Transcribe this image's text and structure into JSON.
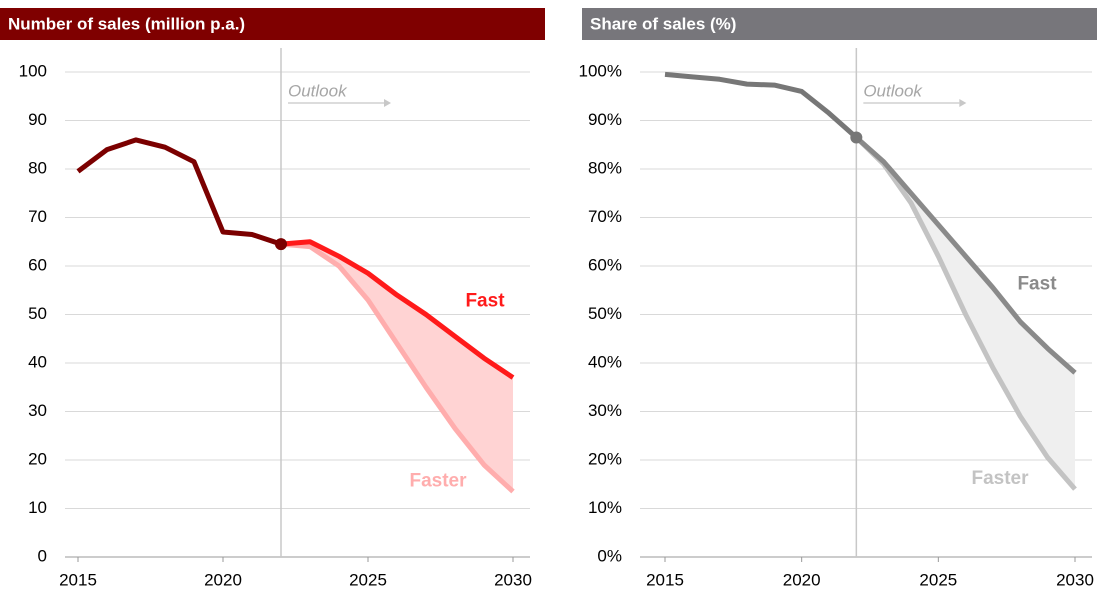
{
  "chart_data": [
    {
      "type": "line",
      "title": "Number of sales (million p.a.)",
      "annotation": "Outlook",
      "outlook_x": 2022,
      "xlim": [
        2015,
        2030
      ],
      "xticks": [
        2015,
        2020,
        2025,
        2030
      ],
      "ylim": [
        0,
        100
      ],
      "yticks": [
        0,
        10,
        20,
        30,
        40,
        50,
        60,
        70,
        80,
        90,
        100
      ],
      "grid": true,
      "header_color": "#7f0000",
      "band_color": "#ffd3d3",
      "series": [
        {
          "color": "#7b0000",
          "x": [
            2015,
            2016,
            2017,
            2018,
            2019,
            2020,
            2021,
            2022
          ],
          "values": [
            79.5,
            84,
            86,
            84.5,
            81.5,
            67,
            66.5,
            64.5
          ]
        },
        {
          "name": "Fast",
          "color": "#ff1a1a",
          "x": [
            2022,
            2023,
            2024,
            2025,
            2026,
            2027,
            2028,
            2029,
            2030
          ],
          "values": [
            64.5,
            65,
            62,
            58.5,
            54,
            50,
            45.5,
            41,
            37
          ]
        },
        {
          "name": "Faster",
          "color": "#ffadad",
          "x": [
            2022,
            2023,
            2024,
            2025,
            2026,
            2027,
            2028,
            2029,
            2030
          ],
          "values": [
            64.5,
            64,
            60,
            53,
            44,
            35,
            26.5,
            19,
            13.5
          ]
        }
      ]
    },
    {
      "type": "line",
      "title": "Share of sales (%)",
      "annotation": "Outlook",
      "outlook_x": 2022,
      "xlim": [
        2015,
        2030
      ],
      "xticks": [
        2015,
        2020,
        2025,
        2030
      ],
      "ylim": [
        0,
        100
      ],
      "yticks": [
        {
          "value": 0,
          "label": "0%"
        },
        {
          "value": 10,
          "label": "10%"
        },
        {
          "value": 20,
          "label": "20%"
        },
        {
          "value": 30,
          "label": "30%"
        },
        {
          "value": 40,
          "label": "40%"
        },
        {
          "value": 50,
          "label": "50%"
        },
        {
          "value": 60,
          "label": "60%"
        },
        {
          "value": 70,
          "label": "70%"
        },
        {
          "value": 80,
          "label": "80%"
        },
        {
          "value": 90,
          "label": "90%"
        },
        {
          "value": 100,
          "label": "100%"
        }
      ],
      "grid": true,
      "header_color": "#77767b",
      "band_color": "#efefef",
      "series": [
        {
          "color": "#777777",
          "x": [
            2015,
            2016,
            2017,
            2018,
            2019,
            2020,
            2021,
            2022
          ],
          "values": [
            99.5,
            99,
            98.5,
            97.5,
            97.3,
            96,
            91.5,
            86.5
          ]
        },
        {
          "name": "Fast",
          "color": "#8a8a8a",
          "x": [
            2022,
            2023,
            2024,
            2025,
            2026,
            2027,
            2028,
            2029,
            2030
          ],
          "values": [
            86.5,
            81.5,
            75,
            68.5,
            62,
            55.5,
            48.5,
            43,
            38
          ]
        },
        {
          "name": "Faster",
          "color": "#c3c3c3",
          "x": [
            2022,
            2023,
            2024,
            2025,
            2026,
            2027,
            2028,
            2029,
            2030
          ],
          "values": [
            86.5,
            81,
            73,
            62,
            50,
            39,
            29,
            20.5,
            14
          ]
        }
      ]
    }
  ]
}
